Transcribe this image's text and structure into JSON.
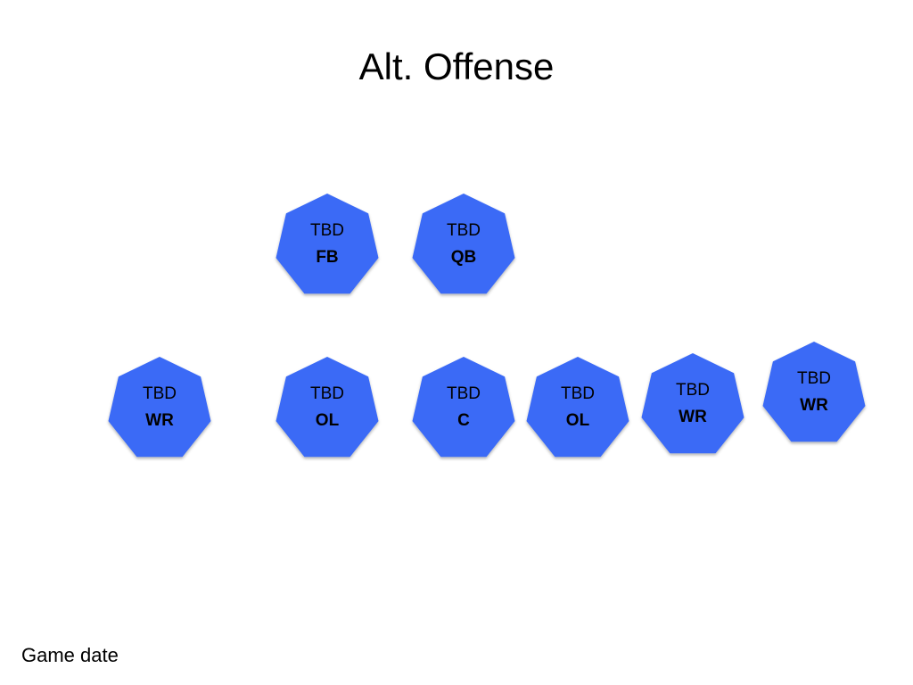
{
  "title": "Alt. Offense",
  "nodes": [
    {
      "name": "TBD",
      "position": "FB"
    },
    {
      "name": "TBD",
      "position": "QB"
    },
    {
      "name": "TBD",
      "position": "WR"
    },
    {
      "name": "TBD",
      "position": "OL"
    },
    {
      "name": "TBD",
      "position": "C"
    },
    {
      "name": "TBD",
      "position": "OL"
    },
    {
      "name": "TBD",
      "position": "WR"
    },
    {
      "name": "TBD",
      "position": "WR"
    }
  ],
  "footer": "Game date"
}
